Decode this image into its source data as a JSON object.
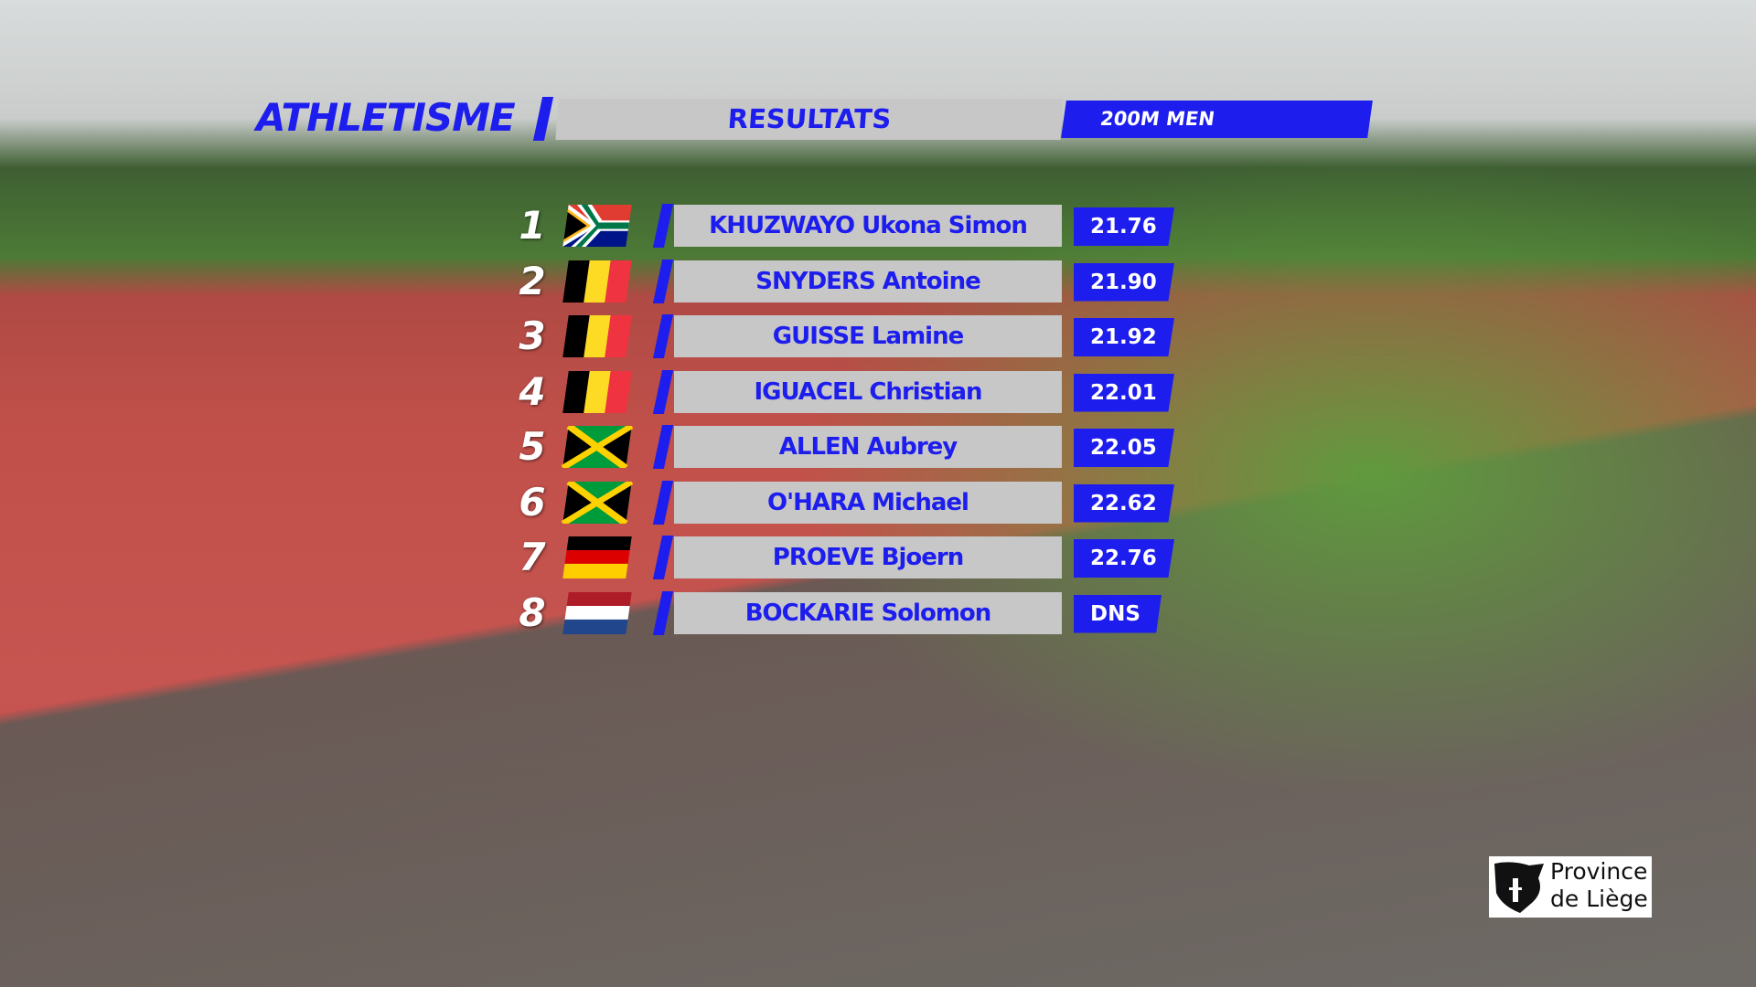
{
  "header": {
    "sport": "ATHLETISME",
    "section": "RESULTATS",
    "event": "200M MEN"
  },
  "results": {
    "rows": [
      {
        "rank": 1,
        "name": "KHUZWAYO Ukona Simon",
        "time": "21.76"
      },
      {
        "rank": 2,
        "name": "SNYDERS Antoine",
        "time": "21.90"
      },
      {
        "rank": 3,
        "name": "GUISSE Lamine",
        "time": "21.92"
      },
      {
        "rank": 4,
        "name": "IGUACEL Christian",
        "time": "22.01"
      },
      {
        "rank": 5,
        "name": "ALLEN Aubrey",
        "time": "22.05"
      },
      {
        "rank": 6,
        "name": "O'HARA Michael",
        "time": "22.62"
      },
      {
        "rank": 7,
        "name": "PROEVE Bjoern",
        "time": "22.76"
      },
      {
        "rank": 8,
        "name": "BOCKARIE Solomon",
        "time": "DNS"
      }
    ]
  },
  "logo": {
    "line1": "Province",
    "line2": "de Liège"
  }
}
